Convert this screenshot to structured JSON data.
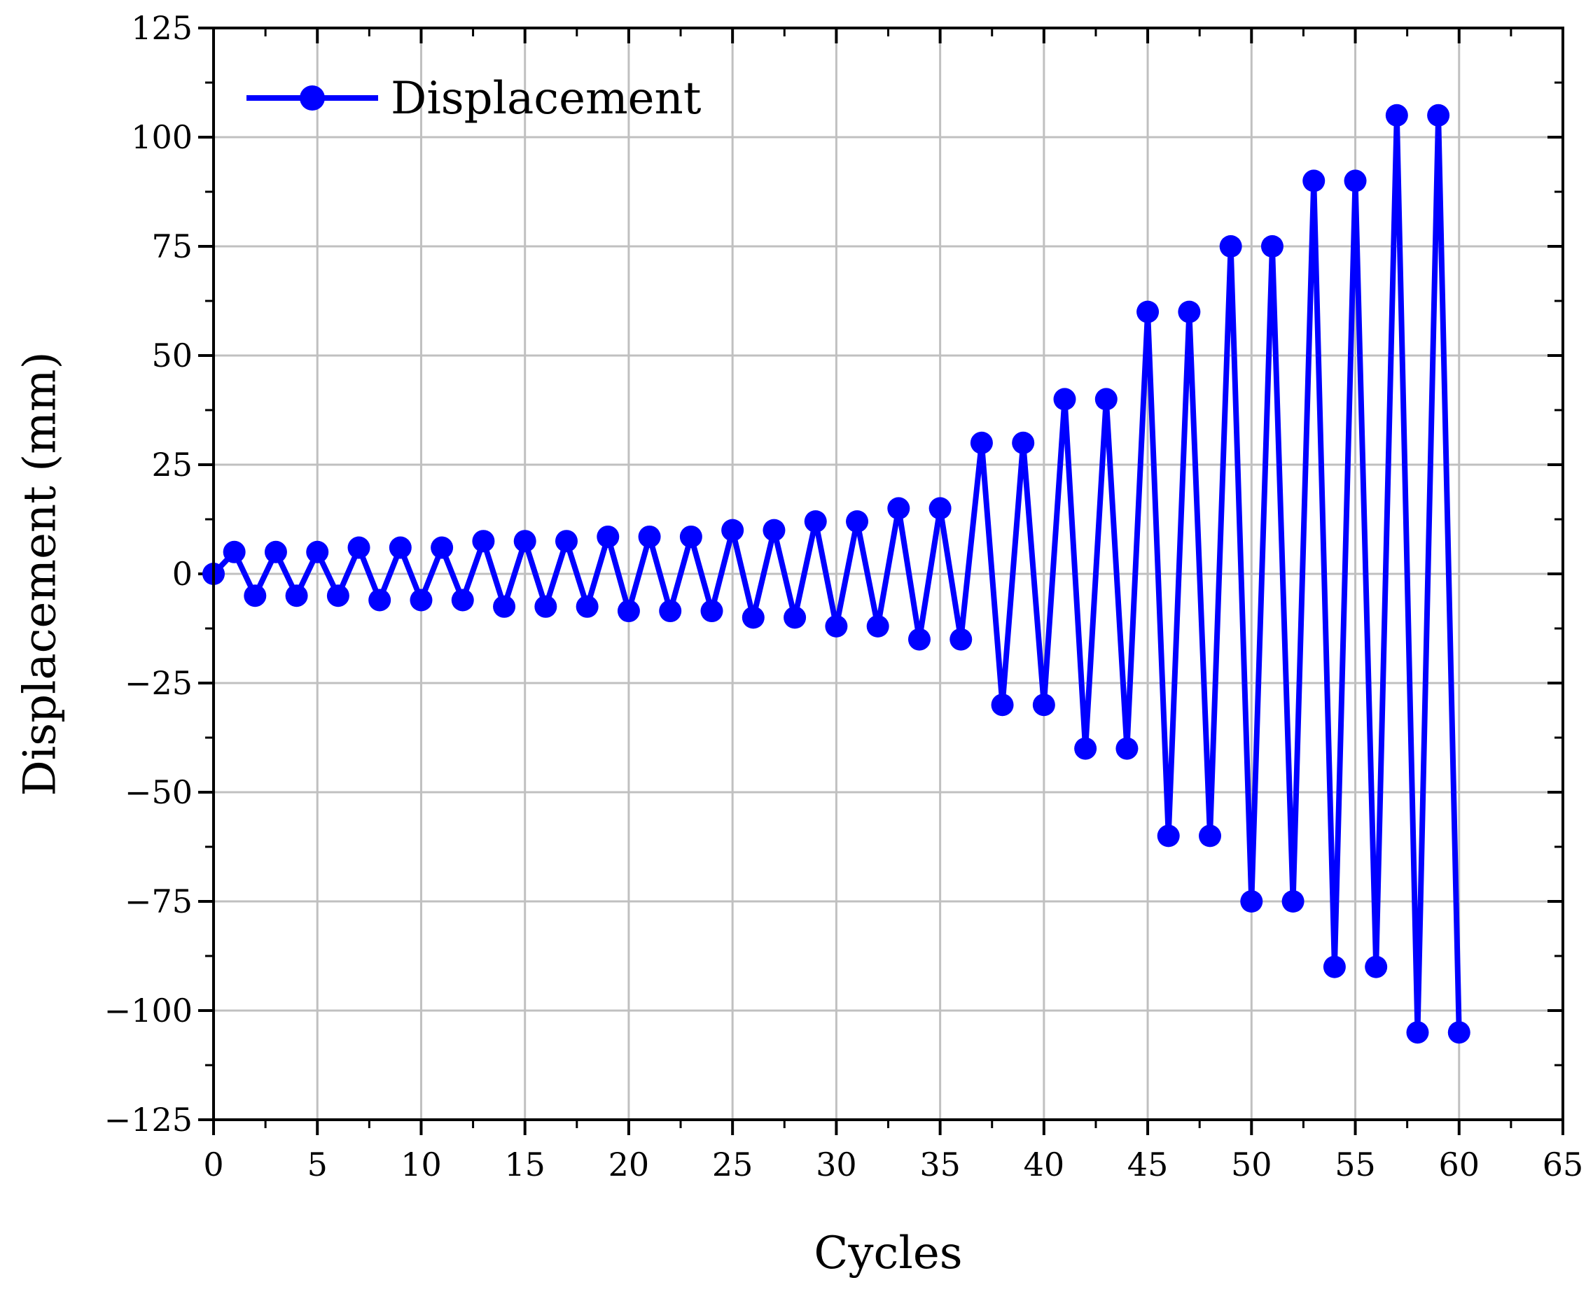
{
  "chart_data": {
    "type": "line",
    "title": "",
    "xlabel": "Cycles",
    "ylabel": "Displacement (mm)",
    "xlim": [
      0,
      65
    ],
    "ylim": [
      -125,
      125
    ],
    "xticks": [
      0,
      5,
      10,
      15,
      20,
      25,
      30,
      35,
      40,
      45,
      50,
      55,
      60,
      65
    ],
    "yticks": [
      -125,
      -100,
      -75,
      -50,
      -25,
      0,
      25,
      50,
      75,
      100,
      125
    ],
    "xtick_labels": [
      "0",
      "5",
      "10",
      "15",
      "20",
      "25",
      "30",
      "35",
      "40",
      "45",
      "50",
      "55",
      "60",
      "65"
    ],
    "ytick_labels": [
      "−125",
      "−100",
      "−75",
      "−50",
      "−25",
      "0",
      "25",
      "50",
      "75",
      "100",
      "125"
    ],
    "grid": true,
    "legend_position": "top-left",
    "series": [
      {
        "name": "Displacement",
        "color": "#0000ff",
        "marker": "circle",
        "x": [
          0,
          1,
          2,
          3,
          4,
          5,
          6,
          7,
          8,
          9,
          10,
          11,
          12,
          13,
          14,
          15,
          16,
          17,
          18,
          19,
          20,
          21,
          22,
          23,
          24,
          25,
          26,
          27,
          28,
          29,
          30,
          31,
          32,
          33,
          34,
          35,
          36,
          37,
          38,
          39,
          40,
          41,
          42,
          43,
          44,
          45,
          46,
          47,
          48,
          49,
          50,
          51,
          52,
          53,
          54,
          55,
          56,
          57,
          58,
          59,
          60
        ],
        "values": [
          0,
          5,
          -5,
          5,
          -5,
          5,
          -5,
          6,
          -6,
          6,
          -6,
          6,
          -6,
          7.5,
          -7.5,
          7.5,
          -7.5,
          7.5,
          -7.5,
          8.5,
          -8.5,
          8.5,
          -8.5,
          8.5,
          -8.5,
          10,
          -10,
          10,
          -10,
          12,
          -12,
          12,
          -12,
          15,
          -15,
          15,
          -15,
          30,
          -30,
          30,
          -30,
          40,
          -40,
          40,
          -40,
          60,
          -60,
          60,
          -60,
          75,
          -75,
          75,
          -75,
          90,
          -90,
          90,
          -90,
          105,
          -105,
          105,
          -105
        ]
      }
    ]
  }
}
